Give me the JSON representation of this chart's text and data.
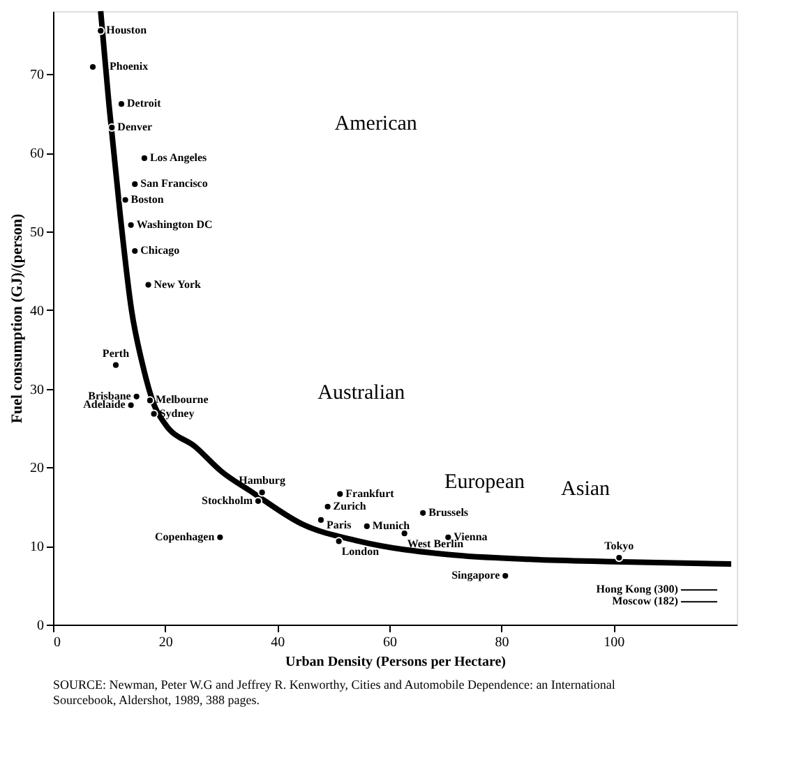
{
  "chart_data": {
    "type": "scatter",
    "xlabel": "Urban Density (Persons per Hectare)",
    "ylabel": "Fuel consumption (GJ)/(person)",
    "xlim": [
      0,
      122
    ],
    "xticks": [
      0,
      20,
      40,
      60,
      80,
      100
    ],
    "ylim": [
      0,
      78
    ],
    "yticks": [
      0,
      10,
      20,
      30,
      40,
      50,
      60,
      70
    ],
    "grid": false,
    "series": [
      {
        "marker": "circle",
        "color": "#000000",
        "x": [
          8.5,
          7.1,
          12.2,
          10.5,
          16.3,
          14.6,
          12.9,
          13.9,
          14.6,
          17,
          11.2,
          14.9,
          13.9,
          17.3,
          18,
          37.3,
          36.6,
          51.2,
          49,
          47.8,
          29.8,
          51,
          56,
          62.7,
          66,
          70.5,
          80.7,
          101
        ],
        "values": [
          75.5,
          70.9,
          66.2,
          63.2,
          59.3,
          56,
          54,
          50.8,
          47.5,
          43.2,
          33,
          29,
          27.9,
          28.5,
          26.8,
          16.8,
          15.7,
          16.6,
          15,
          13.3,
          11.1,
          10.6,
          12.5,
          11.6,
          14.2,
          11.1,
          6.2,
          8.5
        ]
      },
      {
        "type": "line",
        "line_style": "solid",
        "color": "#000000",
        "x": [
          8.5,
          10,
          12,
          14,
          16,
          18,
          20,
          25.4,
          30,
          35.6,
          44.4,
          54.6,
          70.5,
          85,
          100,
          121
        ],
        "values": [
          78,
          66,
          52,
          40,
          33,
          28,
          25.5,
          22.6,
          19.5,
          16.8,
          12.8,
          10.6,
          8.9,
          8.3,
          8,
          7.7
        ]
      }
    ],
    "annotations": [
      {
        "text": "Houston",
        "x": 8.5,
        "y": 75.5
      },
      {
        "text": "Phoenix",
        "x": 7.1,
        "y": 70.9
      },
      {
        "text": "Detroit",
        "x": 12.2,
        "y": 66.2
      },
      {
        "text": "Denver",
        "x": 10.5,
        "y": 63.2
      },
      {
        "text": "Los Angeles",
        "x": 16.3,
        "y": 59.3
      },
      {
        "text": "San Francisco",
        "x": 14.6,
        "y": 56
      },
      {
        "text": "Boston",
        "x": 12.9,
        "y": 54
      },
      {
        "text": "Washington DC",
        "x": 13.9,
        "y": 50.8
      },
      {
        "text": "Chicago",
        "x": 14.6,
        "y": 47.5
      },
      {
        "text": "New York",
        "x": 17,
        "y": 43.2
      },
      {
        "text": "Perth",
        "x": 11.2,
        "y": 33
      },
      {
        "text": "Brisbane",
        "x": 14.9,
        "y": 29
      },
      {
        "text": "Adelaide",
        "x": 13.9,
        "y": 27.9
      },
      {
        "text": "Melbourne",
        "x": 17.3,
        "y": 28.5
      },
      {
        "text": "Sydney",
        "x": 18,
        "y": 26.8
      },
      {
        "text": "Hamburg",
        "x": 37.3,
        "y": 16.8
      },
      {
        "text": "Stockholm",
        "x": 36.6,
        "y": 15.7
      },
      {
        "text": "Frankfurt",
        "x": 51.2,
        "y": 16.6
      },
      {
        "text": "Zurich",
        "x": 49,
        "y": 15
      },
      {
        "text": "Paris",
        "x": 47.8,
        "y": 13.3
      },
      {
        "text": "Copenhagen",
        "x": 29.8,
        "y": 11.1
      },
      {
        "text": "London",
        "x": 51,
        "y": 10.6
      },
      {
        "text": "Munich",
        "x": 56,
        "y": 12.5
      },
      {
        "text": "West Berlin",
        "x": 62.7,
        "y": 11.6
      },
      {
        "text": "Brussels",
        "x": 66,
        "y": 14.2
      },
      {
        "text": "Vienna",
        "x": 70.5,
        "y": 11.1
      },
      {
        "text": "Singapore",
        "x": 80.7,
        "y": 6.2
      },
      {
        "text": "Tokyo",
        "x": 101,
        "y": 8.5
      },
      "Hong Kong (300)",
      "Moscow (182)",
      "American",
      "Australian",
      "European",
      "Asian",
      "SOURCE: Newman, Peter W.G and Jeffrey R. Kenworthy, Cities and Automobile Dependence: an International Sourcebook, Aldershot, 1989, 388 pages."
    ]
  }
}
